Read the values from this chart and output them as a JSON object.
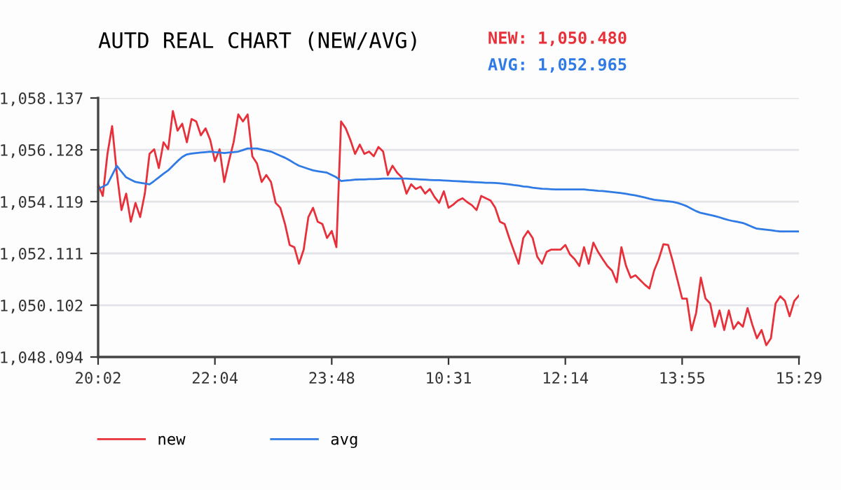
{
  "chart_data": {
    "type": "line",
    "title": "AUTD REAL CHART (NEW/AVG)",
    "annotations": [
      "NEW: 1,050.480",
      "AVG: 1,052.965"
    ],
    "categories": [
      "20:02",
      null,
      null,
      null,
      null,
      null,
      null,
      null,
      null,
      null,
      null,
      null,
      null,
      null,
      null,
      null,
      null,
      null,
      null,
      null,
      null,
      null,
      null,
      null,
      null,
      "22:04",
      null,
      null,
      null,
      null,
      null,
      null,
      null,
      null,
      null,
      null,
      null,
      null,
      null,
      null,
      null,
      null,
      null,
      null,
      null,
      null,
      null,
      null,
      null,
      null,
      "23:48",
      null,
      null,
      null,
      null,
      null,
      null,
      null,
      null,
      null,
      null,
      null,
      null,
      null,
      null,
      null,
      null,
      null,
      null,
      null,
      null,
      null,
      null,
      null,
      null,
      "10:31",
      null,
      null,
      null,
      null,
      null,
      null,
      null,
      null,
      null,
      null,
      null,
      null,
      null,
      null,
      null,
      null,
      null,
      null,
      null,
      null,
      null,
      null,
      null,
      null,
      "12:14",
      null,
      null,
      null,
      null,
      null,
      null,
      null,
      null,
      null,
      null,
      null,
      null,
      null,
      null,
      null,
      null,
      null,
      null,
      null,
      null,
      null,
      null,
      null,
      null,
      "13:55",
      null,
      null,
      null,
      null,
      null,
      null,
      null,
      null,
      null,
      null,
      null,
      null,
      null,
      null,
      null,
      null,
      null,
      null,
      null,
      null,
      null,
      null,
      null,
      null,
      "15:29"
    ],
    "ylim": [
      1048.094,
      1058.137
    ],
    "yticks": [
      {
        "value": 1048.094,
        "label": "1,048.094"
      },
      {
        "value": 1050.102,
        "label": "1,050.102"
      },
      {
        "value": 1052.111,
        "label": "1,052.111"
      },
      {
        "value": 1054.119,
        "label": "1,054.119"
      },
      {
        "value": 1056.128,
        "label": "1,056.128"
      },
      {
        "value": 1058.137,
        "label": "1,058.137"
      }
    ],
    "grid": "y",
    "legend": "bottom",
    "marker": "none",
    "line_style": "solid",
    "series": [
      {
        "name": "new",
        "color": "#e8303a",
        "values": [
          1054.79,
          1054.34,
          1055.97,
          1057.05,
          1055.24,
          1053.79,
          1054.43,
          1053.34,
          1054.07,
          1053.52,
          1054.43,
          1055.97,
          1056.15,
          1055.42,
          1056.42,
          1056.15,
          1057.63,
          1056.87,
          1057.14,
          1056.42,
          1057.32,
          1057.23,
          1056.69,
          1056.96,
          1056.51,
          1055.69,
          1056.15,
          1054.88,
          1055.69,
          1056.42,
          1057.5,
          1057.23,
          1057.5,
          1055.88,
          1055.6,
          1054.88,
          1055.15,
          1054.88,
          1054.07,
          1053.88,
          1053.25,
          1052.44,
          1052.35,
          1051.71,
          1052.26,
          1053.52,
          1053.88,
          1053.34,
          1053.25,
          1052.71,
          1052.98,
          1052.35,
          1057.23,
          1056.96,
          1056.51,
          1055.97,
          1056.33,
          1055.97,
          1056.06,
          1055.88,
          1056.24,
          1056.06,
          1055.15,
          1055.51,
          1055.24,
          1055.06,
          1054.43,
          1054.79,
          1054.61,
          1054.7,
          1054.43,
          1054.61,
          1054.3,
          1054.07,
          1054.52,
          1053.88,
          1054.0,
          1054.16,
          1054.25,
          1054.1,
          1053.98,
          1053.79,
          1054.34,
          1054.25,
          1054.16,
          1053.88,
          1053.34,
          1053.25,
          1052.71,
          1052.2,
          1051.71,
          1052.71,
          1052.98,
          1052.71,
          1051.98,
          1051.71,
          1052.17,
          1052.26,
          1052.26,
          1052.26,
          1052.44,
          1052.07,
          1051.89,
          1051.62,
          1052.35,
          1051.71,
          1052.53,
          1052.17,
          1051.89,
          1051.62,
          1051.44,
          1050.99,
          1052.35,
          1051.62,
          1051.17,
          1051.26,
          1051.08,
          1050.9,
          1050.75,
          1051.44,
          1051.89,
          1052.47,
          1052.44,
          1051.8,
          1051.08,
          1050.36,
          1050.36,
          1049.13,
          1049.81,
          1051.17,
          1050.36,
          1050.17,
          1049.27,
          1049.9,
          1049.14,
          1049.9,
          1049.18,
          1049.45,
          1049.27,
          1049.99,
          1049.36,
          1048.82,
          1049.14,
          1048.55,
          1048.82,
          1050.17,
          1050.45,
          1050.27,
          1049.67,
          1050.27,
          1050.48
        ]
      },
      {
        "name": "avg",
        "color": "#2f7ae5",
        "values": [
          1054.61,
          1054.7,
          1054.79,
          1055.15,
          1055.51,
          1055.28,
          1055.06,
          1054.97,
          1054.88,
          1054.85,
          1054.82,
          1054.79,
          1054.92,
          1055.06,
          1055.2,
          1055.33,
          1055.51,
          1055.69,
          1055.85,
          1055.95,
          1055.98,
          1056.0,
          1056.02,
          1056.04,
          1056.06,
          1056.04,
          1056.02,
          1056.0,
          1056.02,
          1056.04,
          1056.06,
          1056.12,
          1056.18,
          1056.18,
          1056.18,
          1056.14,
          1056.1,
          1056.06,
          1055.98,
          1055.9,
          1055.82,
          1055.72,
          1055.61,
          1055.51,
          1055.45,
          1055.39,
          1055.33,
          1055.3,
          1055.27,
          1055.24,
          1055.15,
          1055.06,
          1054.92,
          1054.94,
          1054.95,
          1054.97,
          1054.98,
          1054.98,
          1054.99,
          1054.99,
          1055.0,
          1055.01,
          1055.01,
          1055.01,
          1055.01,
          1055.01,
          1055.01,
          1055.0,
          1054.99,
          1054.98,
          1054.97,
          1054.96,
          1054.95,
          1054.95,
          1054.94,
          1054.93,
          1054.92,
          1054.91,
          1054.9,
          1054.89,
          1054.88,
          1054.87,
          1054.86,
          1054.85,
          1054.85,
          1054.84,
          1054.83,
          1054.81,
          1054.79,
          1054.76,
          1054.74,
          1054.71,
          1054.69,
          1054.66,
          1054.64,
          1054.62,
          1054.61,
          1054.6,
          1054.59,
          1054.59,
          1054.59,
          1054.59,
          1054.59,
          1054.59,
          1054.59,
          1054.57,
          1054.56,
          1054.54,
          1054.53,
          1054.51,
          1054.49,
          1054.47,
          1054.45,
          1054.42,
          1054.39,
          1054.36,
          1054.32,
          1054.28,
          1054.23,
          1054.19,
          1054.17,
          1054.15,
          1054.13,
          1054.11,
          1054.07,
          1054.01,
          1053.94,
          1053.84,
          1053.75,
          1053.68,
          1053.64,
          1053.6,
          1053.56,
          1053.51,
          1053.45,
          1053.4,
          1053.36,
          1053.33,
          1053.29,
          1053.22,
          1053.14,
          1053.07,
          1053.05,
          1053.03,
          1053.01,
          1052.98,
          1052.96,
          1052.96,
          1052.96,
          1052.96,
          1052.96
        ]
      }
    ]
  }
}
